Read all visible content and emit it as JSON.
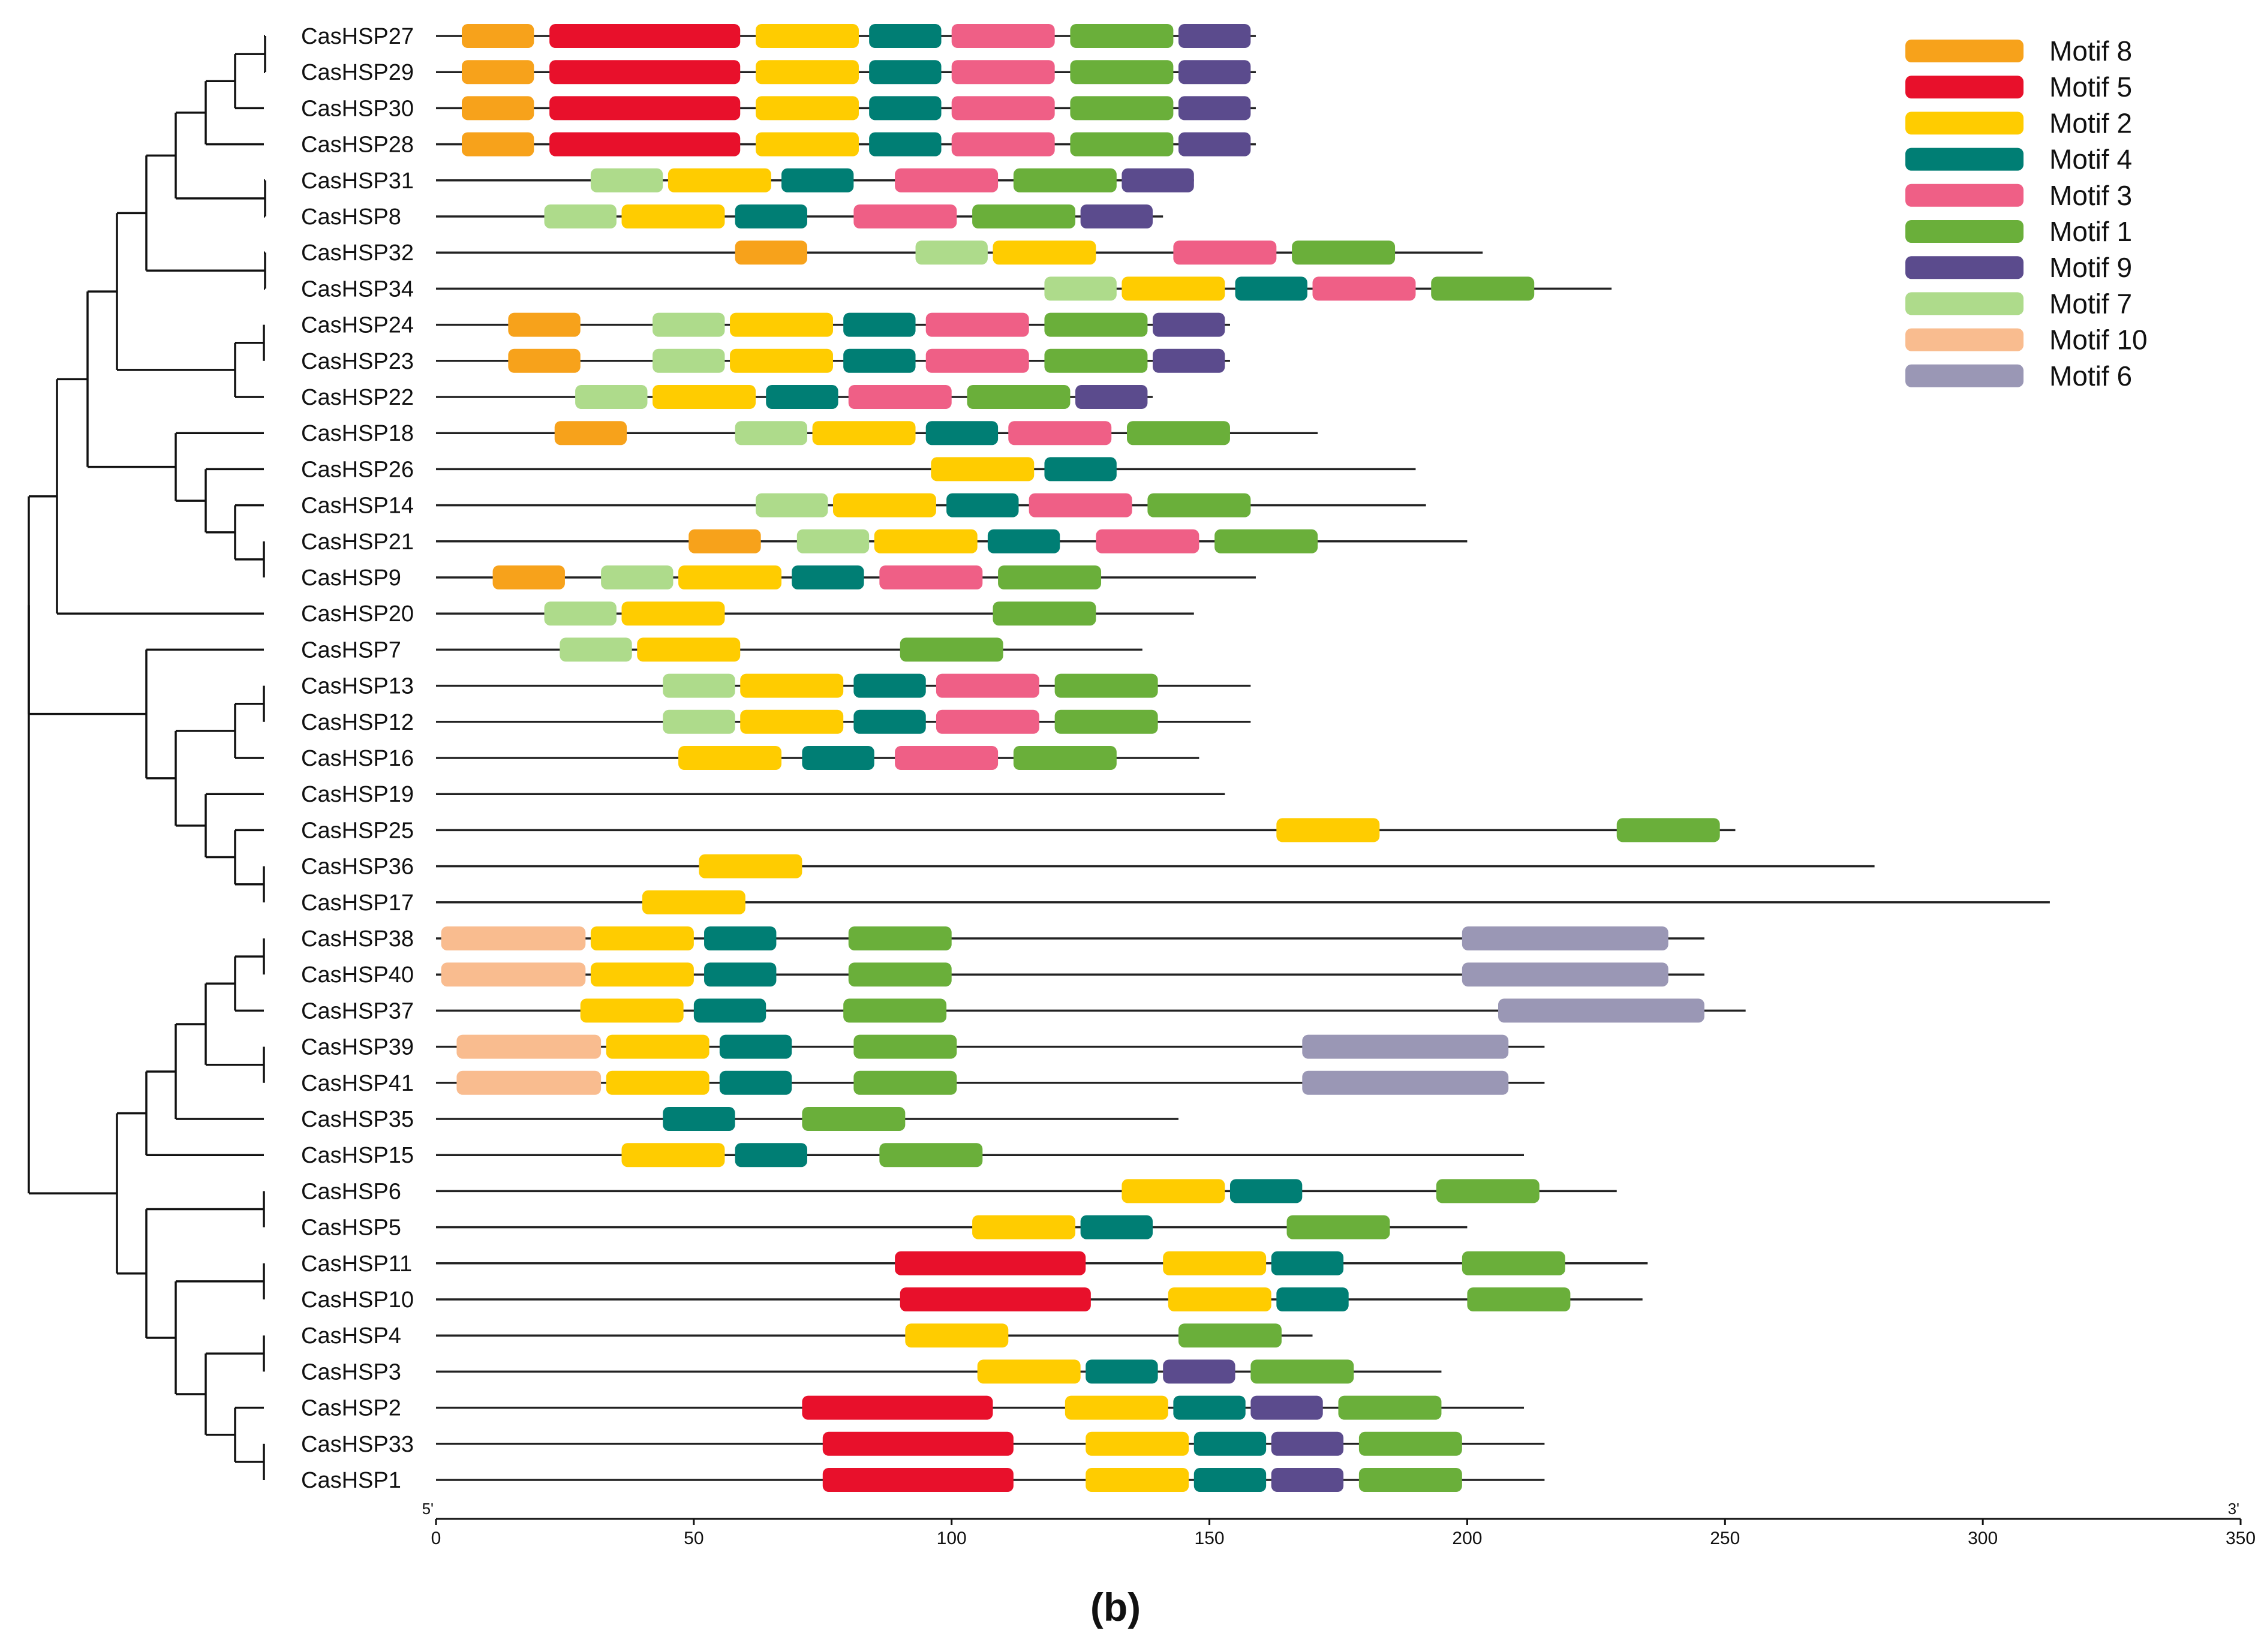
{
  "chart_data": {
    "type": "motif-diagram",
    "caption": "(b)",
    "axis": {
      "min": 0,
      "max": 350,
      "ticks": [
        0,
        50,
        100,
        150,
        200,
        250,
        300,
        350
      ],
      "start_label": "5'",
      "end_label": "3'"
    },
    "motif_colors": {
      "Motif 8": "#F7A21B",
      "Motif 5": "#E8102B",
      "Motif 2": "#FFCC00",
      "Motif 4": "#007E74",
      "Motif 3": "#EF5F86",
      "Motif 1": "#6AAF3A",
      "Motif 9": "#5B4B8D",
      "Motif 7": "#AEDB8B",
      "Motif 10": "#F9BC8F",
      "Motif 6": "#9A97B5"
    },
    "legend": [
      "Motif 8",
      "Motif 5",
      "Motif 2",
      "Motif 4",
      "Motif 3",
      "Motif 1",
      "Motif 9",
      "Motif 7",
      "Motif 10",
      "Motif 6"
    ],
    "genes": [
      {
        "name": "CasHSP27",
        "length": 159,
        "motifs": [
          [
            "Motif 8",
            5,
            19
          ],
          [
            "Motif 5",
            22,
            59
          ],
          [
            "Motif 2",
            62,
            82
          ],
          [
            "Motif 4",
            84,
            98
          ],
          [
            "Motif 3",
            100,
            120
          ],
          [
            "Motif 1",
            123,
            143
          ],
          [
            "Motif 9",
            144,
            158
          ]
        ]
      },
      {
        "name": "CasHSP29",
        "length": 159,
        "motifs": [
          [
            "Motif 8",
            5,
            19
          ],
          [
            "Motif 5",
            22,
            59
          ],
          [
            "Motif 2",
            62,
            82
          ],
          [
            "Motif 4",
            84,
            98
          ],
          [
            "Motif 3",
            100,
            120
          ],
          [
            "Motif 1",
            123,
            143
          ],
          [
            "Motif 9",
            144,
            158
          ]
        ]
      },
      {
        "name": "CasHSP30",
        "length": 159,
        "motifs": [
          [
            "Motif 8",
            5,
            19
          ],
          [
            "Motif 5",
            22,
            59
          ],
          [
            "Motif 2",
            62,
            82
          ],
          [
            "Motif 4",
            84,
            98
          ],
          [
            "Motif 3",
            100,
            120
          ],
          [
            "Motif 1",
            123,
            143
          ],
          [
            "Motif 9",
            144,
            158
          ]
        ]
      },
      {
        "name": "CasHSP28",
        "length": 159,
        "motifs": [
          [
            "Motif 8",
            5,
            19
          ],
          [
            "Motif 5",
            22,
            59
          ],
          [
            "Motif 2",
            62,
            82
          ],
          [
            "Motif 4",
            84,
            98
          ],
          [
            "Motif 3",
            100,
            120
          ],
          [
            "Motif 1",
            123,
            143
          ],
          [
            "Motif 9",
            144,
            158
          ]
        ]
      },
      {
        "name": "CasHSP31",
        "length": 147,
        "motifs": [
          [
            "Motif 7",
            30,
            44
          ],
          [
            "Motif 2",
            45,
            65
          ],
          [
            "Motif 4",
            67,
            81
          ],
          [
            "Motif 3",
            89,
            109
          ],
          [
            "Motif 1",
            112,
            132
          ],
          [
            "Motif 9",
            133,
            147
          ]
        ]
      },
      {
        "name": "CasHSP8",
        "length": 141,
        "motifs": [
          [
            "Motif 7",
            21,
            35
          ],
          [
            "Motif 2",
            36,
            56
          ],
          [
            "Motif 4",
            58,
            72
          ],
          [
            "Motif 3",
            81,
            101
          ],
          [
            "Motif 1",
            104,
            124
          ],
          [
            "Motif 9",
            125,
            139
          ]
        ]
      },
      {
        "name": "CasHSP32",
        "length": 203,
        "motifs": [
          [
            "Motif 8",
            58,
            72
          ],
          [
            "Motif 7",
            93,
            107
          ],
          [
            "Motif 2",
            108,
            128
          ],
          [
            "Motif 3",
            143,
            163
          ],
          [
            "Motif 1",
            166,
            186
          ]
        ]
      },
      {
        "name": "CasHSP34",
        "length": 228,
        "motifs": [
          [
            "Motif 7",
            118,
            132
          ],
          [
            "Motif 2",
            133,
            153
          ],
          [
            "Motif 4",
            155,
            169
          ],
          [
            "Motif 3",
            170,
            190
          ],
          [
            "Motif 1",
            193,
            213
          ]
        ]
      },
      {
        "name": "CasHSP24",
        "length": 154,
        "motifs": [
          [
            "Motif 8",
            14,
            28
          ],
          [
            "Motif 7",
            42,
            56
          ],
          [
            "Motif 2",
            57,
            77
          ],
          [
            "Motif 4",
            79,
            93
          ],
          [
            "Motif 3",
            95,
            115
          ],
          [
            "Motif 1",
            118,
            138
          ],
          [
            "Motif 9",
            139,
            153
          ]
        ]
      },
      {
        "name": "CasHSP23",
        "length": 154,
        "motifs": [
          [
            "Motif 8",
            14,
            28
          ],
          [
            "Motif 7",
            42,
            56
          ],
          [
            "Motif 2",
            57,
            77
          ],
          [
            "Motif 4",
            79,
            93
          ],
          [
            "Motif 3",
            95,
            115
          ],
          [
            "Motif 1",
            118,
            138
          ],
          [
            "Motif 9",
            139,
            153
          ]
        ]
      },
      {
        "name": "CasHSP22",
        "length": 139,
        "motifs": [
          [
            "Motif 7",
            27,
            41
          ],
          [
            "Motif 2",
            42,
            62
          ],
          [
            "Motif 4",
            64,
            78
          ],
          [
            "Motif 3",
            80,
            100
          ],
          [
            "Motif 1",
            103,
            123
          ],
          [
            "Motif 9",
            124,
            138
          ]
        ]
      },
      {
        "name": "CasHSP18",
        "length": 171,
        "motifs": [
          [
            "Motif 8",
            23,
            37
          ],
          [
            "Motif 7",
            58,
            72
          ],
          [
            "Motif 2",
            73,
            93
          ],
          [
            "Motif 4",
            95,
            109
          ],
          [
            "Motif 3",
            111,
            131
          ],
          [
            "Motif 1",
            134,
            154
          ]
        ]
      },
      {
        "name": "CasHSP26",
        "length": 190,
        "motifs": [
          [
            "Motif 2",
            96,
            116
          ],
          [
            "Motif 4",
            118,
            132
          ]
        ]
      },
      {
        "name": "CasHSP14",
        "length": 192,
        "motifs": [
          [
            "Motif 7",
            62,
            76
          ],
          [
            "Motif 2",
            77,
            97
          ],
          [
            "Motif 4",
            99,
            113
          ],
          [
            "Motif 3",
            115,
            135
          ],
          [
            "Motif 1",
            138,
            158
          ]
        ]
      },
      {
        "name": "CasHSP21",
        "length": 200,
        "motifs": [
          [
            "Motif 8",
            49,
            63
          ],
          [
            "Motif 7",
            70,
            84
          ],
          [
            "Motif 2",
            85,
            105
          ],
          [
            "Motif 4",
            107,
            121
          ],
          [
            "Motif 3",
            128,
            148
          ],
          [
            "Motif 1",
            151,
            171
          ]
        ]
      },
      {
        "name": "CasHSP9",
        "length": 159,
        "motifs": [
          [
            "Motif 8",
            11,
            25
          ],
          [
            "Motif 7",
            32,
            46
          ],
          [
            "Motif 2",
            47,
            67
          ],
          [
            "Motif 4",
            69,
            83
          ],
          [
            "Motif 3",
            86,
            106
          ],
          [
            "Motif 1",
            109,
            129
          ]
        ]
      },
      {
        "name": "CasHSP20",
        "length": 147,
        "motifs": [
          [
            "Motif 7",
            21,
            35
          ],
          [
            "Motif 2",
            36,
            56
          ],
          [
            "Motif 1",
            108,
            128
          ]
        ]
      },
      {
        "name": "CasHSP7",
        "length": 137,
        "motifs": [
          [
            "Motif 7",
            24,
            38
          ],
          [
            "Motif 2",
            39,
            59
          ],
          [
            "Motif 1",
            90,
            110
          ]
        ]
      },
      {
        "name": "CasHSP13",
        "length": 158,
        "motifs": [
          [
            "Motif 7",
            44,
            58
          ],
          [
            "Motif 2",
            59,
            79
          ],
          [
            "Motif 4",
            81,
            95
          ],
          [
            "Motif 3",
            97,
            117
          ],
          [
            "Motif 1",
            120,
            140
          ]
        ]
      },
      {
        "name": "CasHSP12",
        "length": 158,
        "motifs": [
          [
            "Motif 7",
            44,
            58
          ],
          [
            "Motif 2",
            59,
            79
          ],
          [
            "Motif 4",
            81,
            95
          ],
          [
            "Motif 3",
            97,
            117
          ],
          [
            "Motif 1",
            120,
            140
          ]
        ]
      },
      {
        "name": "CasHSP16",
        "length": 148,
        "motifs": [
          [
            "Motif 2",
            47,
            67
          ],
          [
            "Motif 4",
            71,
            85
          ],
          [
            "Motif 3",
            89,
            109
          ],
          [
            "Motif 1",
            112,
            132
          ]
        ]
      },
      {
        "name": "CasHSP19",
        "length": 153,
        "motifs": []
      },
      {
        "name": "CasHSP25",
        "length": 252,
        "motifs": [
          [
            "Motif 2",
            163,
            183
          ],
          [
            "Motif 1",
            229,
            249
          ]
        ]
      },
      {
        "name": "CasHSP36",
        "length": 279,
        "motifs": [
          [
            "Motif 2",
            51,
            71
          ]
        ]
      },
      {
        "name": "CasHSP17",
        "length": 313,
        "motifs": [
          [
            "Motif 2",
            40,
            60
          ]
        ]
      },
      {
        "name": "CasHSP38",
        "length": 246,
        "motifs": [
          [
            "Motif 10",
            1,
            29
          ],
          [
            "Motif 2",
            30,
            50
          ],
          [
            "Motif 4",
            52,
            66
          ],
          [
            "Motif 1",
            80,
            100
          ],
          [
            "Motif 6",
            199,
            239
          ]
        ]
      },
      {
        "name": "CasHSP40",
        "length": 246,
        "motifs": [
          [
            "Motif 10",
            1,
            29
          ],
          [
            "Motif 2",
            30,
            50
          ],
          [
            "Motif 4",
            52,
            66
          ],
          [
            "Motif 1",
            80,
            100
          ],
          [
            "Motif 6",
            199,
            239
          ]
        ]
      },
      {
        "name": "CasHSP37",
        "length": 254,
        "motifs": [
          [
            "Motif 2",
            28,
            48
          ],
          [
            "Motif 4",
            50,
            64
          ],
          [
            "Motif 1",
            79,
            99
          ],
          [
            "Motif 6",
            206,
            246
          ]
        ]
      },
      {
        "name": "CasHSP39",
        "length": 215,
        "motifs": [
          [
            "Motif 10",
            4,
            32
          ],
          [
            "Motif 2",
            33,
            53
          ],
          [
            "Motif 4",
            55,
            69
          ],
          [
            "Motif 1",
            81,
            101
          ],
          [
            "Motif 6",
            168,
            208
          ]
        ]
      },
      {
        "name": "CasHSP41",
        "length": 215,
        "motifs": [
          [
            "Motif 10",
            4,
            32
          ],
          [
            "Motif 2",
            33,
            53
          ],
          [
            "Motif 4",
            55,
            69
          ],
          [
            "Motif 1",
            81,
            101
          ],
          [
            "Motif 6",
            168,
            208
          ]
        ]
      },
      {
        "name": "CasHSP35",
        "length": 144,
        "motifs": [
          [
            "Motif 4",
            44,
            58
          ],
          [
            "Motif 1",
            71,
            91
          ]
        ]
      },
      {
        "name": "CasHSP15",
        "length": 211,
        "motifs": [
          [
            "Motif 2",
            36,
            56
          ],
          [
            "Motif 4",
            58,
            72
          ],
          [
            "Motif 1",
            86,
            106
          ]
        ]
      },
      {
        "name": "CasHSP6",
        "length": 229,
        "motifs": [
          [
            "Motif 2",
            133,
            153
          ],
          [
            "Motif 4",
            154,
            168
          ],
          [
            "Motif 1",
            194,
            214
          ]
        ]
      },
      {
        "name": "CasHSP5",
        "length": 200,
        "motifs": [
          [
            "Motif 2",
            104,
            124
          ],
          [
            "Motif 4",
            125,
            139
          ],
          [
            "Motif 1",
            165,
            185
          ]
        ]
      },
      {
        "name": "CasHSP11",
        "length": 235,
        "motifs": [
          [
            "Motif 5",
            89,
            126
          ],
          [
            "Motif 2",
            141,
            161
          ],
          [
            "Motif 4",
            162,
            176
          ],
          [
            "Motif 1",
            199,
            219
          ]
        ]
      },
      {
        "name": "CasHSP10",
        "length": 234,
        "motifs": [
          [
            "Motif 5",
            90,
            127
          ],
          [
            "Motif 2",
            142,
            162
          ],
          [
            "Motif 4",
            163,
            177
          ],
          [
            "Motif 1",
            200,
            220
          ]
        ]
      },
      {
        "name": "CasHSP4",
        "length": 170,
        "motifs": [
          [
            "Motif 2",
            91,
            111
          ],
          [
            "Motif 1",
            144,
            164
          ]
        ]
      },
      {
        "name": "CasHSP3",
        "length": 195,
        "motifs": [
          [
            "Motif 2",
            105,
            125
          ],
          [
            "Motif 4",
            126,
            140
          ],
          [
            "Motif 9",
            141,
            155
          ],
          [
            "Motif 1",
            158,
            178
          ]
        ]
      },
      {
        "name": "CasHSP2",
        "length": 211,
        "motifs": [
          [
            "Motif 5",
            71,
            108
          ],
          [
            "Motif 2",
            122,
            142
          ],
          [
            "Motif 4",
            143,
            157
          ],
          [
            "Motif 9",
            158,
            172
          ],
          [
            "Motif 1",
            175,
            195
          ]
        ]
      },
      {
        "name": "CasHSP33",
        "length": 215,
        "motifs": [
          [
            "Motif 5",
            75,
            112
          ],
          [
            "Motif 2",
            126,
            146
          ],
          [
            "Motif 4",
            147,
            161
          ],
          [
            "Motif 9",
            162,
            176
          ],
          [
            "Motif 1",
            179,
            199
          ]
        ]
      },
      {
        "name": "CasHSP1",
        "length": 215,
        "motifs": [
          [
            "Motif 5",
            75,
            112
          ],
          [
            "Motif 2",
            126,
            146
          ],
          [
            "Motif 4",
            147,
            161
          ],
          [
            "Motif 9",
            162,
            176
          ],
          [
            "Motif 1",
            179,
            199
          ]
        ]
      }
    ]
  }
}
